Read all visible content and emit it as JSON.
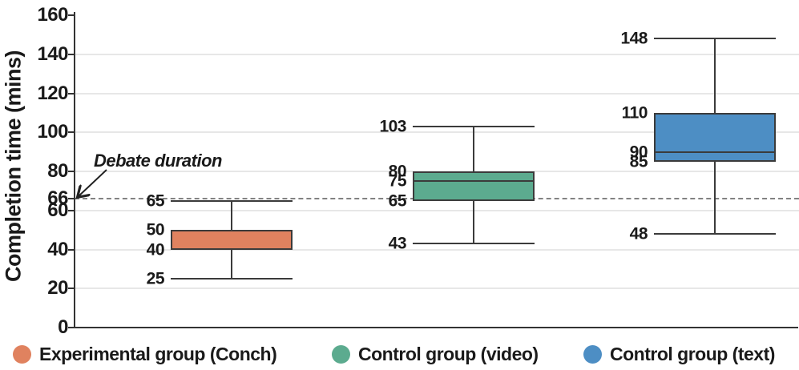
{
  "chart_data": {
    "type": "boxplot",
    "title": "",
    "ylabel": "Completion time (mins)",
    "xlabel": "",
    "ylim": [
      0,
      160
    ],
    "yticks": [
      0,
      20,
      40,
      60,
      66,
      80,
      100,
      120,
      140,
      160
    ],
    "gridline_values": [
      20,
      40,
      60,
      80,
      100,
      120,
      140
    ],
    "grid": "horizontal",
    "legend_position": "bottom",
    "reference_line": {
      "value": 66,
      "label": "Debate duration",
      "style": "dashed"
    },
    "series": [
      {
        "name": "Experimental group (Conch)",
        "color": "#e0825f",
        "whisker_low": 25,
        "q1": 40,
        "median": null,
        "q3": 50,
        "whisker_high": 65
      },
      {
        "name": "Control group (video)",
        "color": "#5cab8f",
        "whisker_low": 43,
        "q1": 65,
        "median": 75,
        "q3": 80,
        "whisker_high": 103
      },
      {
        "name": "Control group (text)",
        "color": "#4d8ec4",
        "whisker_low": 48,
        "q1": 85,
        "median": 90,
        "q3": 110,
        "whisker_high": 148
      }
    ],
    "colors": {
      "box_border": "#3b3b3b",
      "gridline": "#e7e7e7",
      "axis": "#333333",
      "reference_line": "#828282",
      "text": "#1a1a1a"
    }
  }
}
